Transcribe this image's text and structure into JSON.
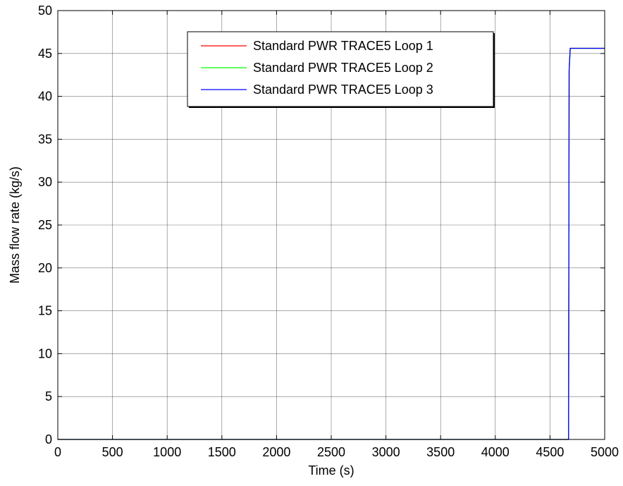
{
  "chart_data": {
    "type": "line",
    "xlabel": "Time (s)",
    "ylabel": "Mass flow rate (kg/s)",
    "xlim": [
      0,
      5000
    ],
    "ylim": [
      0,
      50
    ],
    "x_ticks": [
      0,
      500,
      1000,
      1500,
      2000,
      2500,
      3000,
      3500,
      4000,
      4500,
      5000
    ],
    "y_ticks": [
      0,
      5,
      10,
      15,
      20,
      25,
      30,
      35,
      40,
      45,
      50
    ],
    "grid": true,
    "legend_position": "top-right",
    "series": [
      {
        "name": "Standard PWR TRACE5 Loop 1",
        "color": "#ff0000",
        "points": [
          [
            0,
            0
          ],
          [
            4670,
            0
          ],
          [
            4675,
            43.0
          ],
          [
            4685,
            45.6
          ],
          [
            5000,
            45.6
          ]
        ]
      },
      {
        "name": "Standard PWR TRACE5 Loop 2",
        "color": "#00ff00",
        "points": [
          [
            0,
            0
          ],
          [
            4670,
            0
          ],
          [
            4675,
            43.0
          ],
          [
            4685,
            45.6
          ],
          [
            5000,
            45.6
          ]
        ]
      },
      {
        "name": "Standard PWR TRACE5 Loop 3",
        "color": "#0000ff",
        "points": [
          [
            0,
            0
          ],
          [
            4670,
            0
          ],
          [
            4675,
            43.0
          ],
          [
            4685,
            45.6
          ],
          [
            5000,
            45.6
          ]
        ]
      }
    ]
  }
}
